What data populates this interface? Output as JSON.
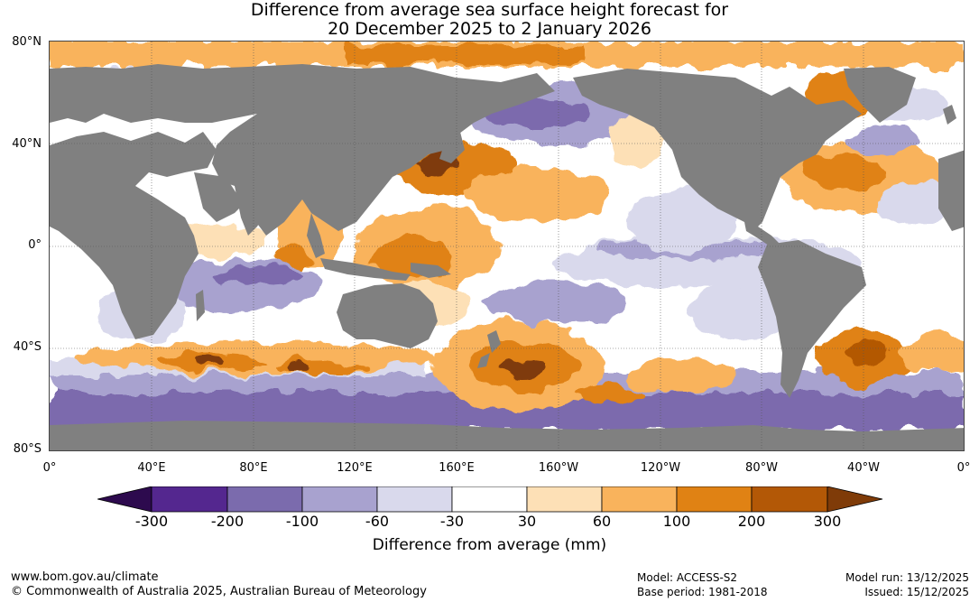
{
  "title": {
    "line1": "Difference from average sea surface height forecast for",
    "line2": "20 December 2025 to 2 January 2026"
  },
  "lat_labels": [
    "80°N",
    "40°N",
    "0°",
    "40°S",
    "80°S"
  ],
  "lon_labels": [
    "0°",
    "40°E",
    "80°E",
    "120°E",
    "160°E",
    "160°W",
    "120°W",
    "80°W",
    "40°W",
    "0°"
  ],
  "colorbar": {
    "ticks": [
      "-300",
      "-200",
      "-100",
      "-60",
      "-30",
      "30",
      "60",
      "100",
      "200",
      "300"
    ],
    "label": "Difference from average (mm)",
    "colors": {
      "below_min": "#2d0a4e",
      "c1": "#54278f",
      "c2": "#7b6bad",
      "c3": "#a8a2cf",
      "c4": "#d9d9ec",
      "c5": "#ffffff",
      "c6": "#fde0b6",
      "c7": "#f9b35c",
      "c8": "#e08214",
      "c9": "#b35806",
      "above_max": "#7f3b08"
    }
  },
  "land_color": "#808080",
  "footer": {
    "url": "www.bom.gov.au/climate",
    "copyright": "© Commonwealth of Australia 2025, Australian Bureau of Meteorology",
    "model": "Model: ACCESS-S2",
    "base_period": "Base period: 1981-2018",
    "model_run": "Model run: 13/12/2025",
    "issued": "Issued: 15/12/2025"
  }
}
